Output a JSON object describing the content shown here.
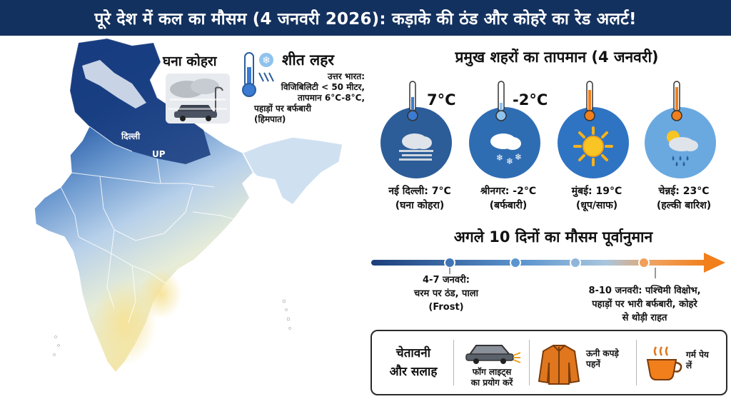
{
  "header": {
    "title": "पूरे देश में कल का मौसम (4 जनवरी 2026): कड़ाके की ठंड और कोहरे का रेड अलर्ट!",
    "bg": "#13315e"
  },
  "map": {
    "labels": {
      "delhi": "दिल्ली",
      "up": "UP"
    },
    "fog_title": "घना कोहरा",
    "cold_title": "शीत लहर",
    "cold_lines": [
      "उत्तर भारत:",
      "विजिबिलिटी < 50 मीटर,",
      "तापमान 6°C-8°C,",
      "पहाड़ों पर बर्फबारी",
      "(हिमपात)"
    ]
  },
  "cities": {
    "title": "प्रमुख शहरों का तापमान (4 जनवरी)",
    "items": [
      {
        "temp": "7°C",
        "name": "नई दिल्ली: 7°C",
        "cond": "(घना कोहरा)",
        "icon": "fog-icon"
      },
      {
        "temp": "-2°C",
        "name": "श्रीनगर: -2°C",
        "cond": "(बर्फबारी)",
        "icon": "snow-icon"
      },
      {
        "temp": "",
        "name": "मुंबई: 19°C",
        "cond": "(धूप/साफ)",
        "icon": "sun-icon"
      },
      {
        "temp": "",
        "name": "चेन्नई: 23°C",
        "cond": "(हल्की बारिश)",
        "icon": "rain-icon"
      }
    ]
  },
  "forecast": {
    "title": "अगले 10 दिनों का मौसम पूर्वानुमान",
    "note1": [
      "4-7 जनवरी:",
      "चरम पर ठंड, पाला",
      "(Frost)"
    ],
    "note2": [
      "8-10 जनवरी: पश्चिमी विक्षोभ,",
      "पहाड़ों पर भारी बर्फबारी, कोहरे",
      "से थोड़ी राहत"
    ]
  },
  "advice": {
    "title_lines": [
      "चेतावनी",
      "और सलाह"
    ],
    "fog_lights": [
      "फॉग लाइट्स",
      "का प्रयोग करें"
    ],
    "woolens": [
      "ऊनी कपड़े",
      "पहनें"
    ],
    "warm_drinks": [
      "गर्म पेय",
      "लें"
    ]
  },
  "colors": {
    "dark_blue": "#13315e",
    "sun_orange": "#f07f1c",
    "cold_blue": "#2a5d9e"
  }
}
